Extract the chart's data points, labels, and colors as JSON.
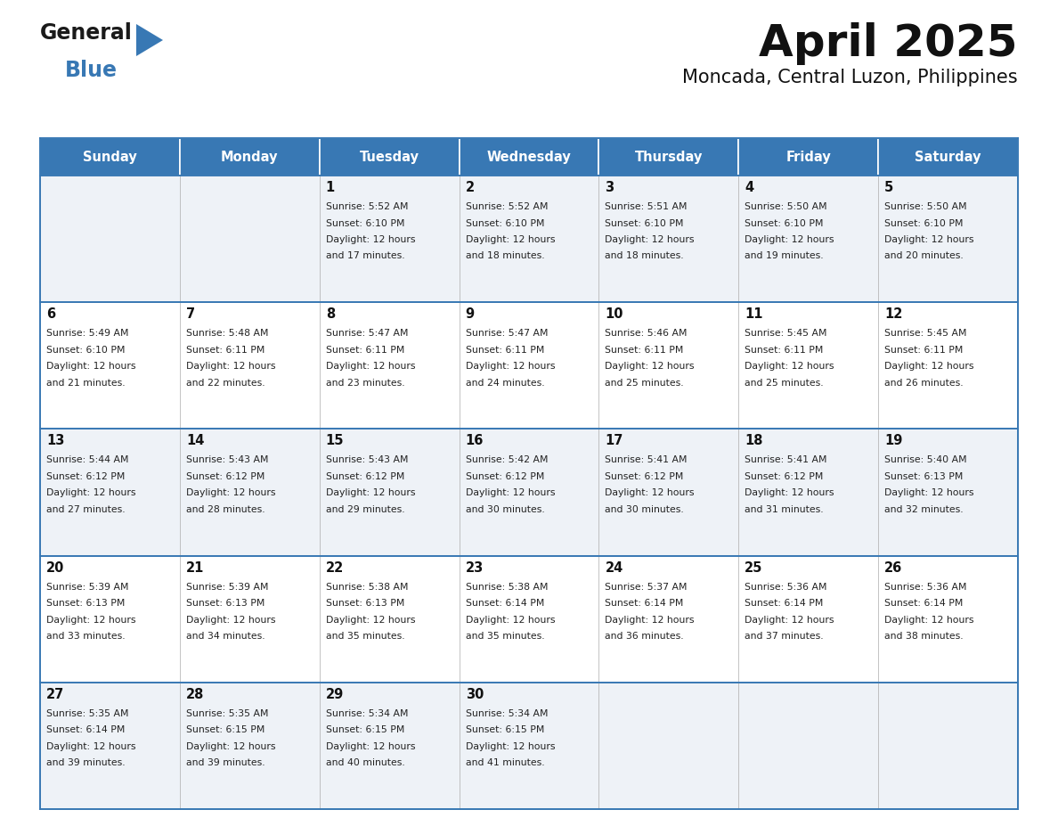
{
  "title": "April 2025",
  "subtitle": "Moncada, Central Luzon, Philippines",
  "header_bg_color": "#3878b4",
  "header_text_color": "#ffffff",
  "cell_bg_color_odd": "#eef2f7",
  "cell_bg_color_even": "#ffffff",
  "grid_line_color": "#aaaaaa",
  "border_color": "#3878b4",
  "day_headers": [
    "Sunday",
    "Monday",
    "Tuesday",
    "Wednesday",
    "Thursday",
    "Friday",
    "Saturday"
  ],
  "weeks": [
    [
      {
        "day": "",
        "info": ""
      },
      {
        "day": "",
        "info": ""
      },
      {
        "day": "1",
        "info": "Sunrise: 5:52 AM\nSunset: 6:10 PM\nDaylight: 12 hours\nand 17 minutes."
      },
      {
        "day": "2",
        "info": "Sunrise: 5:52 AM\nSunset: 6:10 PM\nDaylight: 12 hours\nand 18 minutes."
      },
      {
        "day": "3",
        "info": "Sunrise: 5:51 AM\nSunset: 6:10 PM\nDaylight: 12 hours\nand 18 minutes."
      },
      {
        "day": "4",
        "info": "Sunrise: 5:50 AM\nSunset: 6:10 PM\nDaylight: 12 hours\nand 19 minutes."
      },
      {
        "day": "5",
        "info": "Sunrise: 5:50 AM\nSunset: 6:10 PM\nDaylight: 12 hours\nand 20 minutes."
      }
    ],
    [
      {
        "day": "6",
        "info": "Sunrise: 5:49 AM\nSunset: 6:10 PM\nDaylight: 12 hours\nand 21 minutes."
      },
      {
        "day": "7",
        "info": "Sunrise: 5:48 AM\nSunset: 6:11 PM\nDaylight: 12 hours\nand 22 minutes."
      },
      {
        "day": "8",
        "info": "Sunrise: 5:47 AM\nSunset: 6:11 PM\nDaylight: 12 hours\nand 23 minutes."
      },
      {
        "day": "9",
        "info": "Sunrise: 5:47 AM\nSunset: 6:11 PM\nDaylight: 12 hours\nand 24 minutes."
      },
      {
        "day": "10",
        "info": "Sunrise: 5:46 AM\nSunset: 6:11 PM\nDaylight: 12 hours\nand 25 minutes."
      },
      {
        "day": "11",
        "info": "Sunrise: 5:45 AM\nSunset: 6:11 PM\nDaylight: 12 hours\nand 25 minutes."
      },
      {
        "day": "12",
        "info": "Sunrise: 5:45 AM\nSunset: 6:11 PM\nDaylight: 12 hours\nand 26 minutes."
      }
    ],
    [
      {
        "day": "13",
        "info": "Sunrise: 5:44 AM\nSunset: 6:12 PM\nDaylight: 12 hours\nand 27 minutes."
      },
      {
        "day": "14",
        "info": "Sunrise: 5:43 AM\nSunset: 6:12 PM\nDaylight: 12 hours\nand 28 minutes."
      },
      {
        "day": "15",
        "info": "Sunrise: 5:43 AM\nSunset: 6:12 PM\nDaylight: 12 hours\nand 29 minutes."
      },
      {
        "day": "16",
        "info": "Sunrise: 5:42 AM\nSunset: 6:12 PM\nDaylight: 12 hours\nand 30 minutes."
      },
      {
        "day": "17",
        "info": "Sunrise: 5:41 AM\nSunset: 6:12 PM\nDaylight: 12 hours\nand 30 minutes."
      },
      {
        "day": "18",
        "info": "Sunrise: 5:41 AM\nSunset: 6:12 PM\nDaylight: 12 hours\nand 31 minutes."
      },
      {
        "day": "19",
        "info": "Sunrise: 5:40 AM\nSunset: 6:13 PM\nDaylight: 12 hours\nand 32 minutes."
      }
    ],
    [
      {
        "day": "20",
        "info": "Sunrise: 5:39 AM\nSunset: 6:13 PM\nDaylight: 12 hours\nand 33 minutes."
      },
      {
        "day": "21",
        "info": "Sunrise: 5:39 AM\nSunset: 6:13 PM\nDaylight: 12 hours\nand 34 minutes."
      },
      {
        "day": "22",
        "info": "Sunrise: 5:38 AM\nSunset: 6:13 PM\nDaylight: 12 hours\nand 35 minutes."
      },
      {
        "day": "23",
        "info": "Sunrise: 5:38 AM\nSunset: 6:14 PM\nDaylight: 12 hours\nand 35 minutes."
      },
      {
        "day": "24",
        "info": "Sunrise: 5:37 AM\nSunset: 6:14 PM\nDaylight: 12 hours\nand 36 minutes."
      },
      {
        "day": "25",
        "info": "Sunrise: 5:36 AM\nSunset: 6:14 PM\nDaylight: 12 hours\nand 37 minutes."
      },
      {
        "day": "26",
        "info": "Sunrise: 5:36 AM\nSunset: 6:14 PM\nDaylight: 12 hours\nand 38 minutes."
      }
    ],
    [
      {
        "day": "27",
        "info": "Sunrise: 5:35 AM\nSunset: 6:14 PM\nDaylight: 12 hours\nand 39 minutes."
      },
      {
        "day": "28",
        "info": "Sunrise: 5:35 AM\nSunset: 6:15 PM\nDaylight: 12 hours\nand 39 minutes."
      },
      {
        "day": "29",
        "info": "Sunrise: 5:34 AM\nSunset: 6:15 PM\nDaylight: 12 hours\nand 40 minutes."
      },
      {
        "day": "30",
        "info": "Sunrise: 5:34 AM\nSunset: 6:15 PM\nDaylight: 12 hours\nand 41 minutes."
      },
      {
        "day": "",
        "info": ""
      },
      {
        "day": "",
        "info": ""
      },
      {
        "day": "",
        "info": ""
      }
    ]
  ],
  "fig_width": 11.88,
  "fig_height": 9.18,
  "dpi": 100
}
